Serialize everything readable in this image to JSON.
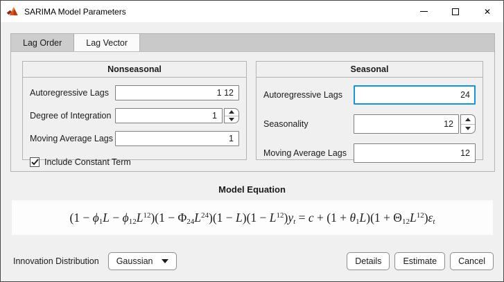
{
  "window": {
    "title": "SARIMA Model Parameters",
    "controls": {
      "minimize_glyph": "—",
      "maximize_glyph": "□",
      "close_glyph": "✕"
    }
  },
  "tabs": [
    {
      "label": "Lag Order",
      "active": false
    },
    {
      "label": "Lag Vector",
      "active": true
    }
  ],
  "nonseasonal": {
    "title": "Nonseasonal",
    "fields": [
      {
        "label": "Autoregressive Lags",
        "value": "1 12",
        "spinner": false
      },
      {
        "label": "Degree of Integration",
        "value": "1",
        "spinner": true
      },
      {
        "label": "Moving Average Lags",
        "value": "1",
        "spinner": false
      }
    ],
    "checkbox": {
      "label": "Include Constant Term",
      "checked": true
    }
  },
  "seasonal": {
    "title": "Seasonal",
    "fields": [
      {
        "label": "Autoregressive Lags",
        "value": "24",
        "spinner": false,
        "focused": true
      },
      {
        "label": "Seasonality",
        "value": "12",
        "spinner": true
      },
      {
        "label": "Moving Average Lags",
        "value": "12",
        "spinner": false
      }
    ]
  },
  "equation_section": {
    "title": "Model Equation",
    "text": "(1 − ϕ₁L − ϕ₁₂L¹²)(1 − Φ₂₄L²⁴)(1 − L)(1 − L¹²)yₜ = c + (1 + θ₁L)(1 + Θ₁₂L¹²)εₜ",
    "tokens": [
      {
        "t": "(1 − "
      },
      {
        "t": "ϕ",
        "v": 1
      },
      {
        "t": "1",
        "sub": 1
      },
      {
        "t": "L",
        "v": 1
      },
      {
        "t": " − "
      },
      {
        "t": "ϕ",
        "v": 1
      },
      {
        "t": "12",
        "sub": 1
      },
      {
        "t": "L",
        "v": 1
      },
      {
        "t": "12",
        "sup": 1
      },
      {
        "t": ")(1 − Φ"
      },
      {
        "t": "24",
        "sub": 1
      },
      {
        "t": "L",
        "v": 1
      },
      {
        "t": "24",
        "sup": 1
      },
      {
        "t": ")(1 − "
      },
      {
        "t": "L",
        "v": 1
      },
      {
        "t": ")(1 − "
      },
      {
        "t": "L",
        "v": 1
      },
      {
        "t": "12",
        "sup": 1
      },
      {
        "t": ")"
      },
      {
        "t": "y",
        "v": 1
      },
      {
        "t": "t",
        "sub": 1,
        "v": 1
      },
      {
        "t": " = "
      },
      {
        "t": "c",
        "v": 1
      },
      {
        "t": " + (1 + "
      },
      {
        "t": "θ",
        "v": 1
      },
      {
        "t": "1",
        "sub": 1
      },
      {
        "t": "L",
        "v": 1
      },
      {
        "t": ")(1 + Θ"
      },
      {
        "t": "12",
        "sub": 1
      },
      {
        "t": "L",
        "v": 1
      },
      {
        "t": "12",
        "sup": 1
      },
      {
        "t": ")"
      },
      {
        "t": "ε",
        "v": 1
      },
      {
        "t": "t",
        "sub": 1,
        "v": 1
      }
    ]
  },
  "footer": {
    "innovation_label": "Innovation Distribution",
    "innovation_value": "Gaussian",
    "buttons": [
      "Details",
      "Estimate",
      "Cancel"
    ]
  },
  "colors": {
    "accent_focus": "#1495e0",
    "matlab_orange": "#d95319",
    "matlab_dark_red": "#8a2a1a",
    "panel_bg": "#f0f0f0",
    "tabstrip_bg": "#c9c9c9"
  }
}
